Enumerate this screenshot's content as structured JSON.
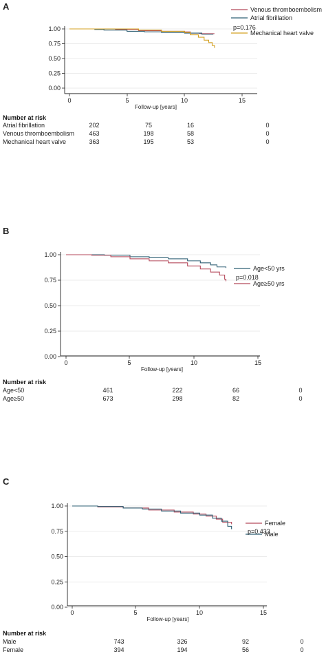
{
  "chart_data": [
    {
      "panel": "A",
      "type": "line",
      "xlabel": "Follow-up [years]",
      "ylabel": "",
      "xlim": [
        0,
        15
      ],
      "ylim": [
        0,
        1
      ],
      "xticks": [
        "0",
        "5",
        "10",
        "15"
      ],
      "yticks": [
        "0.00",
        "0.25",
        "0.50",
        "0.75",
        "1.00"
      ],
      "grid": true,
      "legend_position": "right",
      "pvalue": "p=0.176",
      "series": [
        {
          "name": "Venous thromboembolism",
          "color": "#b5495b",
          "points": [
            [
              0,
              1.0
            ],
            [
              2.5,
              1.0
            ],
            [
              4,
              0.99
            ],
            [
              6,
              0.97
            ],
            [
              8,
              0.96
            ],
            [
              10,
              0.95
            ],
            [
              10.5,
              0.93
            ],
            [
              11.3,
              0.92
            ],
            [
              12.6,
              0.92
            ]
          ]
        },
        {
          "name": "Atrial fibrillation",
          "color": "#2e5f73",
          "points": [
            [
              0,
              1.0
            ],
            [
              2.2,
              0.99
            ],
            [
              3,
              0.98
            ],
            [
              5,
              0.96
            ],
            [
              6.5,
              0.95
            ],
            [
              8,
              0.94
            ],
            [
              10,
              0.93
            ],
            [
              11.5,
              0.91
            ],
            [
              12.5,
              0.91
            ]
          ]
        },
        {
          "name": "Mechanical heart valve",
          "color": "#d4a020",
          "points": [
            [
              0,
              1.0
            ],
            [
              4,
              1.0
            ],
            [
              6,
              0.98
            ],
            [
              8,
              0.96
            ],
            [
              10,
              0.94
            ],
            [
              10.5,
              0.9
            ],
            [
              11.2,
              0.86
            ],
            [
              11.7,
              0.81
            ],
            [
              12.1,
              0.77
            ],
            [
              12.4,
              0.72
            ],
            [
              12.6,
              0.68
            ]
          ]
        }
      ],
      "risk_table": {
        "title": "Number at risk",
        "rows": [
          {
            "label": "Atrial fibrillation",
            "values": [
              "202",
              "75",
              "16",
              "0"
            ]
          },
          {
            "label": "Venous thromboembolism",
            "values": [
              "463",
              "198",
              "58",
              "0"
            ]
          },
          {
            "label": "Mechanical heart valve",
            "values": [
              "363",
              "195",
              "53",
              "0"
            ]
          }
        ]
      }
    },
    {
      "panel": "B",
      "type": "line",
      "xlabel": "Follow-up [years]",
      "ylabel": "",
      "xlim": [
        0,
        15
      ],
      "ylim": [
        0,
        1
      ],
      "xticks": [
        "0",
        "5",
        "10",
        "15"
      ],
      "yticks": [
        "0.00",
        "0.25",
        "0.50",
        "0.75",
        "1.00"
      ],
      "grid": true,
      "legend_position": "right",
      "pvalue": "p=0.018",
      "series": [
        {
          "name": "Age<50 yrs",
          "color": "#2e5f73",
          "points": [
            [
              0,
              1.0
            ],
            [
              3,
              0.995
            ],
            [
              5,
              0.98
            ],
            [
              6.5,
              0.97
            ],
            [
              8,
              0.96
            ],
            [
              9.5,
              0.94
            ],
            [
              10.5,
              0.92
            ],
            [
              11.3,
              0.9
            ],
            [
              11.8,
              0.88
            ],
            [
              12.5,
              0.87
            ]
          ]
        },
        {
          "name": "Age≥50 yrs",
          "color": "#b5495b",
          "points": [
            [
              0,
              1.0
            ],
            [
              2,
              0.995
            ],
            [
              3.5,
              0.98
            ],
            [
              5,
              0.96
            ],
            [
              6.5,
              0.94
            ],
            [
              8,
              0.92
            ],
            [
              9.5,
              0.89
            ],
            [
              10.5,
              0.86
            ],
            [
              11.3,
              0.83
            ],
            [
              12,
              0.8
            ],
            [
              12.4,
              0.76
            ],
            [
              12.5,
              0.74
            ]
          ]
        }
      ],
      "risk_table": {
        "title": "Number at risk",
        "rows": [
          {
            "label": "Age<50",
            "values": [
              "461",
              "222",
              "66",
              "0"
            ]
          },
          {
            "label": "Age≥50",
            "values": [
              "673",
              "298",
              "82",
              "0"
            ]
          }
        ]
      }
    },
    {
      "panel": "C",
      "type": "line",
      "xlabel": "Follow-up [years]",
      "ylabel": "",
      "xlim": [
        0,
        15
      ],
      "ylim": [
        0,
        1
      ],
      "xticks": [
        "0",
        "5",
        "10",
        "15"
      ],
      "yticks": [
        "0.00",
        "0.25",
        "0.50",
        "0.75",
        "1.00"
      ],
      "grid": true,
      "legend_position": "right",
      "pvalue": "p=0.433",
      "series": [
        {
          "name": "Female",
          "color": "#b5495b",
          "points": [
            [
              0,
              1.0
            ],
            [
              2,
              0.99
            ],
            [
              4,
              0.98
            ],
            [
              6,
              0.96
            ],
            [
              8,
              0.94
            ],
            [
              9.5,
              0.92
            ],
            [
              10.5,
              0.9
            ],
            [
              11.3,
              0.87
            ],
            [
              11.8,
              0.84
            ],
            [
              12.5,
              0.82
            ]
          ]
        },
        {
          "name": "Male",
          "color": "#2e5f73",
          "points": [
            [
              0,
              1.0
            ],
            [
              2,
              0.995
            ],
            [
              4,
              0.98
            ],
            [
              5.5,
              0.97
            ],
            [
              7,
              0.95
            ],
            [
              8.5,
              0.93
            ],
            [
              10,
              0.91
            ],
            [
              11,
              0.88
            ],
            [
              11.7,
              0.85
            ],
            [
              12.2,
              0.8
            ],
            [
              12.5,
              0.77
            ]
          ]
        }
      ],
      "risk_table": {
        "title": "Number at risk",
        "rows": [
          {
            "label": "Male",
            "values": [
              "743",
              "326",
              "92",
              "0"
            ]
          },
          {
            "label": "Female",
            "values": [
              "394",
              "194",
              "56",
              "0"
            ]
          }
        ]
      }
    }
  ]
}
